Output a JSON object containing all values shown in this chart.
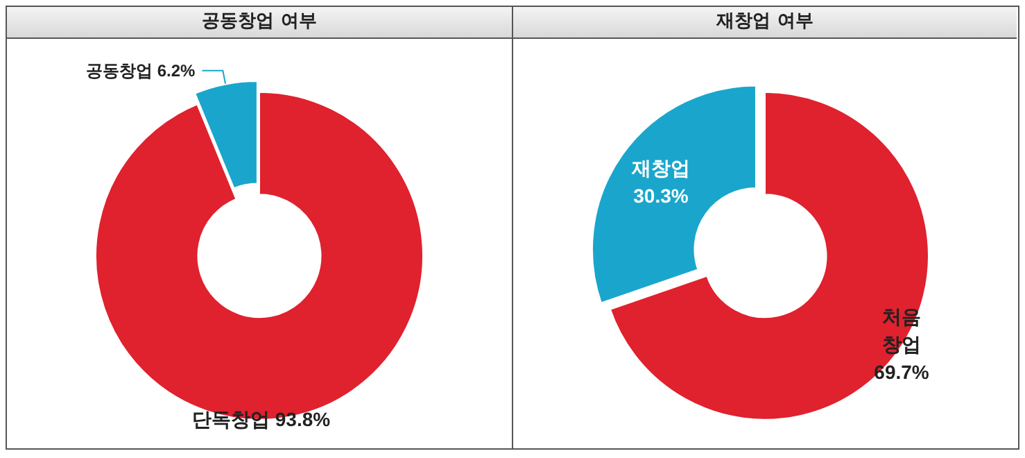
{
  "chart_data": [
    {
      "type": "donut",
      "title": "공동창업 여부",
      "categories": [
        "공동창업",
        "단독창업"
      ],
      "values": [
        6.2,
        93.8
      ],
      "colors": [
        "#1aa6cc",
        "#e0212e"
      ],
      "value_labels": [
        "6.2%",
        "93.8%"
      ],
      "legend": false
    },
    {
      "type": "donut",
      "title": "재창업 여부",
      "categories": [
        "재창업",
        "처음 창업"
      ],
      "values": [
        30.3,
        69.7
      ],
      "colors": [
        "#1aa6cc",
        "#e0212e"
      ],
      "value_labels": [
        "30.3%",
        "69.7%"
      ],
      "legend": false
    }
  ]
}
